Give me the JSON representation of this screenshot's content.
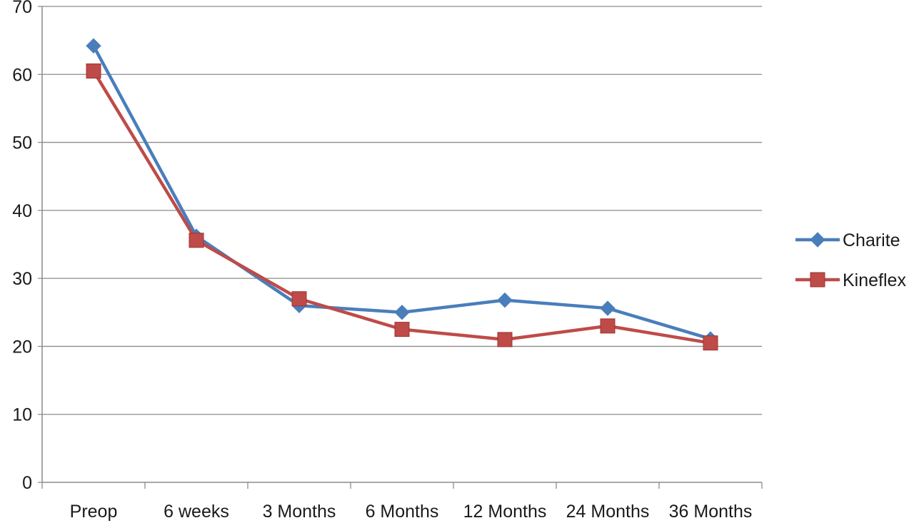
{
  "chart_data": {
    "type": "line",
    "title": "",
    "xlabel": "",
    "ylabel": "",
    "categories": [
      "Preop",
      "6 weeks",
      "3 Months",
      "6 Months",
      "12 Months",
      "24 Months",
      "36 Months"
    ],
    "ylim": [
      0,
      70
    ],
    "yticks": [
      0,
      10,
      20,
      30,
      40,
      50,
      60,
      70
    ],
    "grid": "horizontal",
    "legend": "right",
    "series": [
      {
        "name": "Charite",
        "marker": "diamond",
        "color": "#4a7ebb",
        "values": [
          64.2,
          36.2,
          26.0,
          25.0,
          26.8,
          25.6,
          21.1
        ]
      },
      {
        "name": "Kineflex",
        "marker": "square",
        "color": "#be4b48",
        "values": [
          60.5,
          35.6,
          27.0,
          22.5,
          21.0,
          23.0,
          20.5
        ]
      }
    ]
  }
}
